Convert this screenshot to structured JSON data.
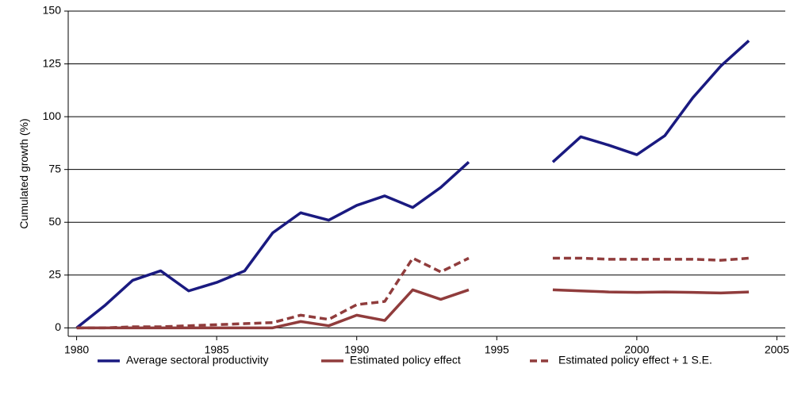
{
  "chart_data": {
    "type": "line",
    "y_label": "Cumulated growth (%)",
    "x": [
      1980,
      1981,
      1982,
      1983,
      1984,
      1985,
      1986,
      1987,
      1988,
      1989,
      1990,
      1991,
      1992,
      1993,
      1994,
      1995,
      1996,
      1997,
      1998,
      1999,
      2000,
      2001,
      2002,
      2003,
      2004
    ],
    "series": [
      {
        "name": "Average sectoral productivity",
        "color": "#1a1a80",
        "dash": false,
        "values": [
          0,
          10.5,
          22.5,
          27,
          17.5,
          21.5,
          27,
          45,
          54.5,
          51,
          58,
          62.5,
          57,
          66.5,
          78.5,
          null,
          null,
          78.5,
          90.5,
          86.5,
          82,
          91,
          109,
          124,
          136
        ]
      },
      {
        "name": "Estimated policy effect",
        "color": "#903c3c",
        "dash": false,
        "values": [
          0,
          0,
          0,
          0,
          0,
          0,
          0,
          0,
          3,
          1,
          6,
          3.5,
          18,
          13.5,
          18,
          null,
          null,
          18,
          17.5,
          17,
          16.8,
          17,
          16.8,
          16.5,
          17
        ]
      },
      {
        "name": "Estimated policy effect + 1 S.E.",
        "color": "#903c3c",
        "dash": true,
        "values": [
          0,
          0,
          0.5,
          0.5,
          1,
          1.5,
          2,
          2.5,
          6,
          4,
          11,
          12.5,
          33,
          26.5,
          33,
          null,
          null,
          33,
          33,
          32.5,
          32.5,
          32.5,
          32.5,
          32,
          33
        ]
      }
    ],
    "xlim": [
      1979.7,
      2005.3
    ],
    "xticks": [
      1980,
      1985,
      1990,
      1995,
      2000,
      2005
    ],
    "ylim": [
      -4,
      150
    ],
    "yticks": [
      0,
      25,
      50,
      75,
      100,
      125,
      150
    ],
    "grid": true,
    "legend": "bottom"
  }
}
